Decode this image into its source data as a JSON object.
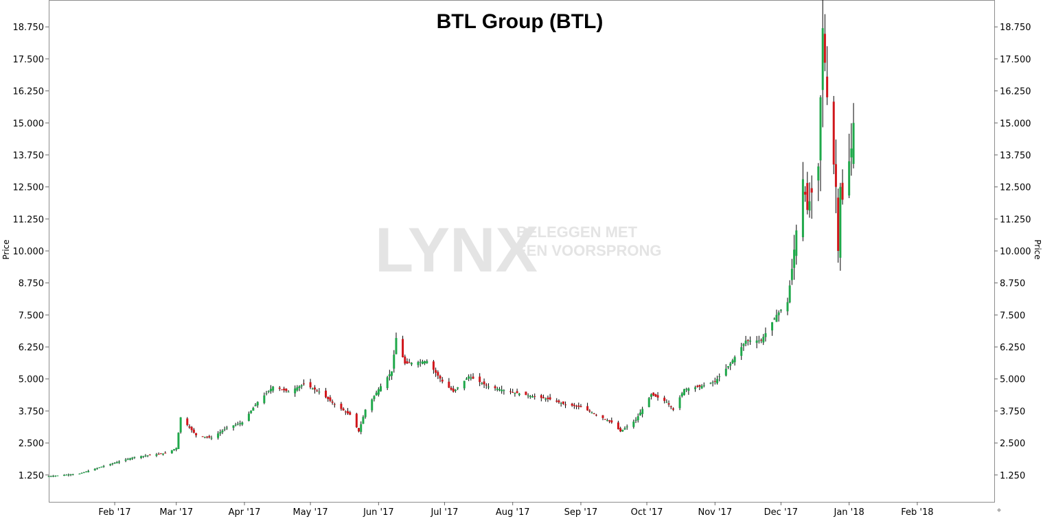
{
  "chart_data": {
    "type": "candlestick",
    "title": "BTL Group (BTL)",
    "ylabel_left": "Price",
    "ylabel_right": "Price",
    "ylim": [
      0.2,
      19.8
    ],
    "yticks": [
      "18.750",
      "17.500",
      "16.250",
      "15.000",
      "13.750",
      "12.500",
      "11.250",
      "10.000",
      "8.750",
      "7.500",
      "6.250",
      "5.000",
      "3.750",
      "2.500",
      "1.250"
    ],
    "xlim": [
      "2017-01-02",
      "2018-03-08"
    ],
    "xticks": [
      {
        "date": "2017-02-01",
        "label": "Feb '17"
      },
      {
        "date": "2017-03-01",
        "label": "Mar '17"
      },
      {
        "date": "2017-04-01",
        "label": "Apr '17"
      },
      {
        "date": "2017-05-01",
        "label": "May '17"
      },
      {
        "date": "2017-06-01",
        "label": "Jun '17"
      },
      {
        "date": "2017-07-01",
        "label": "Jul '17"
      },
      {
        "date": "2017-08-01",
        "label": "Aug '17"
      },
      {
        "date": "2017-09-01",
        "label": "Sep '17"
      },
      {
        "date": "2017-10-01",
        "label": "Oct '17"
      },
      {
        "date": "2017-11-01",
        "label": "Nov '17"
      },
      {
        "date": "2017-12-01",
        "label": "Dec '17"
      },
      {
        "date": "2018-01-01",
        "label": "Jan '18"
      },
      {
        "date": "2018-02-01",
        "label": "Feb '18"
      }
    ],
    "colors": {
      "up": "#1fa84a",
      "down": "#d0161b",
      "wick": "#000000"
    },
    "grid": false,
    "close_path": [
      [
        "2017-01-02",
        1.2
      ],
      [
        "2017-01-16",
        1.3
      ],
      [
        "2017-01-27",
        1.6
      ],
      [
        "2017-02-10",
        1.95
      ],
      [
        "2017-02-24",
        2.1
      ],
      [
        "2017-03-01",
        2.3
      ],
      [
        "2017-03-03",
        3.5
      ],
      [
        "2017-03-10",
        2.8
      ],
      [
        "2017-03-17",
        2.7
      ],
      [
        "2017-03-24",
        3.1
      ],
      [
        "2017-03-31",
        3.3
      ],
      [
        "2017-04-07",
        4.1
      ],
      [
        "2017-04-14",
        4.7
      ],
      [
        "2017-04-21",
        4.5
      ],
      [
        "2017-04-28",
        4.8
      ],
      [
        "2017-05-05",
        4.5
      ],
      [
        "2017-05-12",
        4.0
      ],
      [
        "2017-05-19",
        3.6
      ],
      [
        "2017-05-23",
        2.95
      ],
      [
        "2017-05-26",
        3.8
      ],
      [
        "2017-06-01",
        4.6
      ],
      [
        "2017-06-07",
        5.3
      ],
      [
        "2017-06-09",
        6.6
      ],
      [
        "2017-06-13",
        5.6
      ],
      [
        "2017-06-23",
        5.7
      ],
      [
        "2017-06-30",
        4.9
      ],
      [
        "2017-07-05",
        4.5
      ],
      [
        "2017-07-12",
        5.1
      ],
      [
        "2017-07-21",
        4.7
      ],
      [
        "2017-07-31",
        4.5
      ],
      [
        "2017-08-11",
        4.3
      ],
      [
        "2017-08-18",
        4.2
      ],
      [
        "2017-08-25",
        4.0
      ],
      [
        "2017-09-01",
        3.9
      ],
      [
        "2017-09-08",
        3.6
      ],
      [
        "2017-09-15",
        3.3
      ],
      [
        "2017-09-19",
        2.95
      ],
      [
        "2017-09-26",
        3.4
      ],
      [
        "2017-10-03",
        4.4
      ],
      [
        "2017-10-10",
        4.1
      ],
      [
        "2017-10-13",
        3.8
      ],
      [
        "2017-10-18",
        4.6
      ],
      [
        "2017-10-25",
        4.7
      ],
      [
        "2017-11-01",
        4.9
      ],
      [
        "2017-11-08",
        5.6
      ],
      [
        "2017-11-15",
        6.5
      ],
      [
        "2017-11-22",
        6.5
      ],
      [
        "2017-11-29",
        7.5
      ],
      [
        "2017-12-04",
        8.0
      ],
      [
        "2017-12-06",
        9.3
      ],
      [
        "2017-12-08",
        10.8
      ],
      [
        "2017-12-11",
        12.8
      ],
      [
        "2017-12-13",
        11.6
      ],
      [
        "2017-12-18",
        13.3
      ],
      [
        "2017-12-20",
        18.7
      ],
      [
        "2017-12-22",
        16.0
      ],
      [
        "2017-12-26",
        12.5
      ],
      [
        "2017-12-27",
        10.0
      ],
      [
        "2017-12-28",
        12.5
      ],
      [
        "2017-12-29",
        12.0
      ],
      [
        "2018-01-02",
        14.0
      ],
      [
        "2018-01-03",
        15.0
      ]
    ]
  },
  "watermark": {
    "brand": "LYNX",
    "tagline_line1": "BELEGGEN MET",
    "tagline_line2": "EEN VOORSPRONG"
  }
}
